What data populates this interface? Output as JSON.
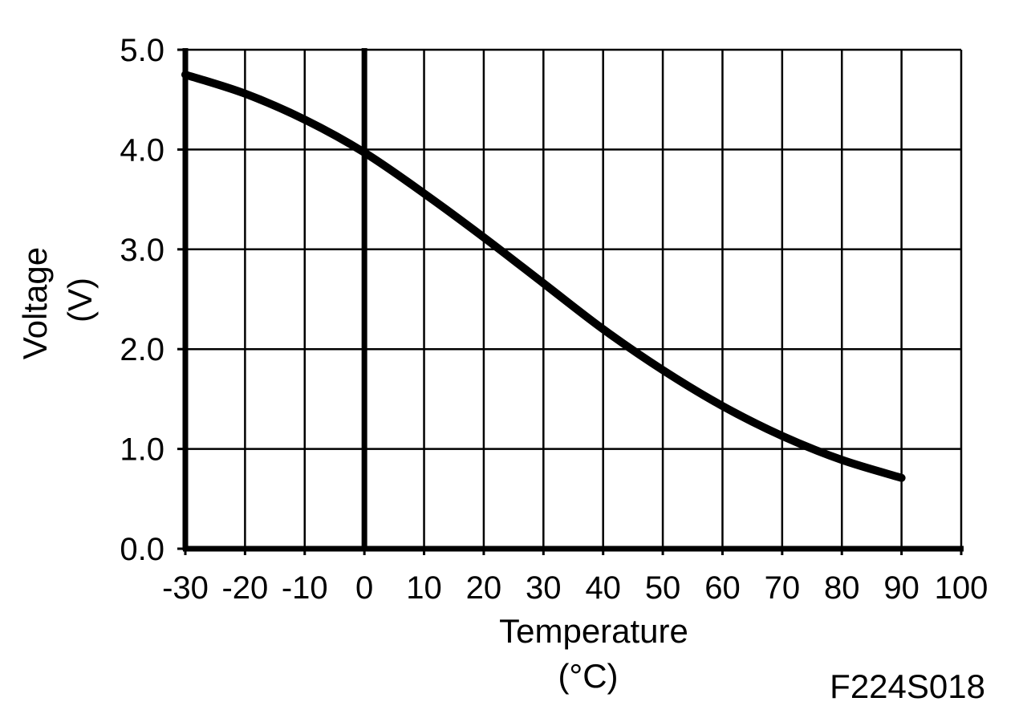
{
  "chart_data": {
    "type": "line",
    "title": "",
    "xlabel": "Temperature",
    "xlabel_unit": "(°C)",
    "ylabel": "Voltage",
    "ylabel_unit": "(V)",
    "xlim": [
      -30,
      100
    ],
    "ylim": [
      0,
      5
    ],
    "x_ticks": [
      -30,
      -20,
      -10,
      0,
      10,
      20,
      30,
      40,
      50,
      60,
      70,
      80,
      90,
      100
    ],
    "x_tick_labels": [
      "-30",
      "-20",
      "-10",
      "0",
      "10",
      "20",
      "30",
      "40",
      "50",
      "60",
      "70",
      "80",
      "90",
      "100"
    ],
    "y_ticks": [
      0,
      1,
      2,
      3,
      4,
      5
    ],
    "y_tick_labels": [
      "0.0",
      "1.0",
      "2.0",
      "3.0",
      "4.0",
      "5.0"
    ],
    "grid": true,
    "legend": "none",
    "series": [
      {
        "x": [
          -30,
          -20,
          -10,
          0,
          10,
          20,
          30,
          40,
          50,
          60,
          70,
          80,
          90
        ],
        "values": [
          4.75,
          4.56,
          4.3,
          3.97,
          3.56,
          3.12,
          2.66,
          2.2,
          1.79,
          1.43,
          1.13,
          0.89,
          0.71
        ]
      }
    ],
    "figure_code": "F224S018"
  },
  "colors": {
    "line": "#000000",
    "grid": "#000000",
    "background": "#ffffff"
  }
}
